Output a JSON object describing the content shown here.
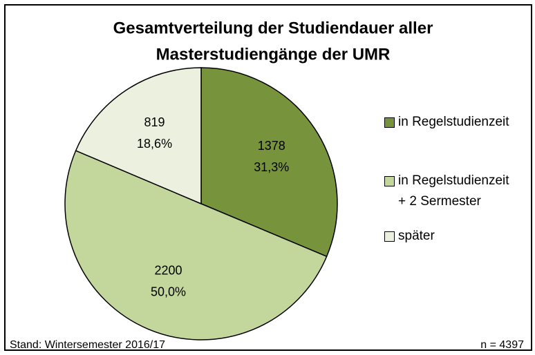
{
  "chart_data": {
    "type": "pie",
    "title": "Gesamtverteilung der Studiendauer aller",
    "subtitle": "Masterstudiengänge der UMR",
    "categories": [
      "in Regelstudienzeit",
      "in Regelstudienzeit\n+ 2 Sermester",
      "später"
    ],
    "values": [
      1378,
      2200,
      819
    ],
    "shares": [
      31.3,
      50.0,
      18.6
    ],
    "share_labels": [
      "31,3%",
      "50,0%",
      "18,6%"
    ],
    "colors": [
      "#77933c",
      "#c3d69b",
      "#ebf1de"
    ],
    "footnote": "Stand: Wintersemester 2016/17",
    "sample_size": "n = 4397"
  }
}
